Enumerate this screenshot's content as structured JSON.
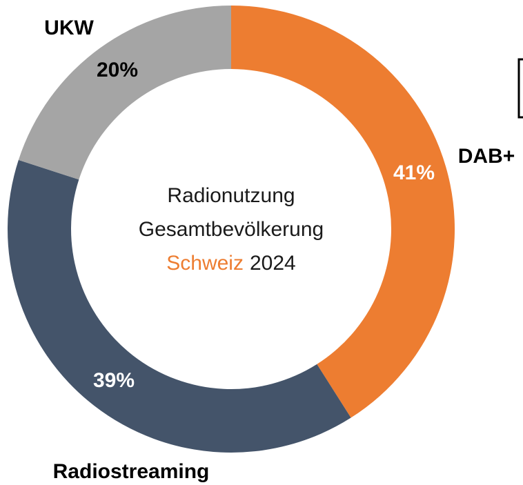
{
  "chart_data": {
    "type": "donut",
    "title_lines": [
      "Radionutzung",
      "Gesamtbevölkerung"
    ],
    "title_highlight": "Schweiz",
    "title_highlight_color": "#ED7D31",
    "title_year": "2024",
    "categories": [
      "DAB+",
      "Radiostreaming",
      "UKW"
    ],
    "values": [
      41,
      39,
      20
    ],
    "value_labels": [
      "41%",
      "39%",
      "20%"
    ],
    "colors": [
      "#ED7D31",
      "#44546A",
      "#A5A5A5"
    ],
    "value_label_colors": [
      "#ffffff",
      "#ffffff",
      "#000000"
    ]
  }
}
